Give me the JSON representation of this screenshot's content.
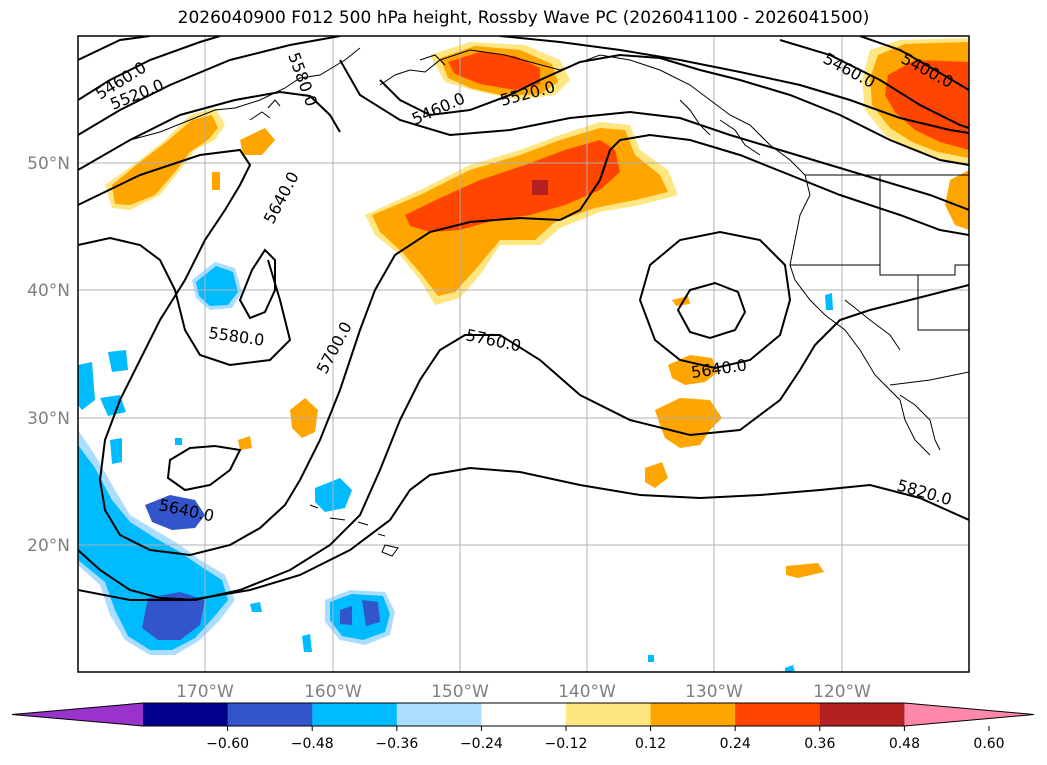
{
  "title": "2026040900 F012 500 hPa height, Rossby Wave PC (2026041100 - 2026041500)",
  "map": {
    "lat_labels": [
      "50°N",
      "40°N",
      "30°N",
      "20°N"
    ],
    "lon_labels": [
      "170°W",
      "160°W",
      "150°W",
      "140°W",
      "130°W",
      "120°W"
    ],
    "contour_labels": [
      "5460.0",
      "5520.0",
      "5580.0",
      "5460.0",
      "5520.0",
      "5460.0",
      "5400.0",
      "5640.0",
      "5580.0",
      "5700.0",
      "5760.0",
      "5640.0",
      "5640.0",
      "5820.0"
    ]
  },
  "colorbar": {
    "ticks": [
      "−0.60",
      "−0.48",
      "−0.36",
      "−0.24",
      "−0.12",
      "0.12",
      "0.24",
      "0.36",
      "0.48",
      "0.60"
    ],
    "colors": [
      "#9933cc",
      "#00008b",
      "#3355cc",
      "#00bbff",
      "#aaddff",
      "#ffffff",
      "#ffe680",
      "#ffa500",
      "#ff4500",
      "#b22222",
      "#ff88aa"
    ]
  }
}
